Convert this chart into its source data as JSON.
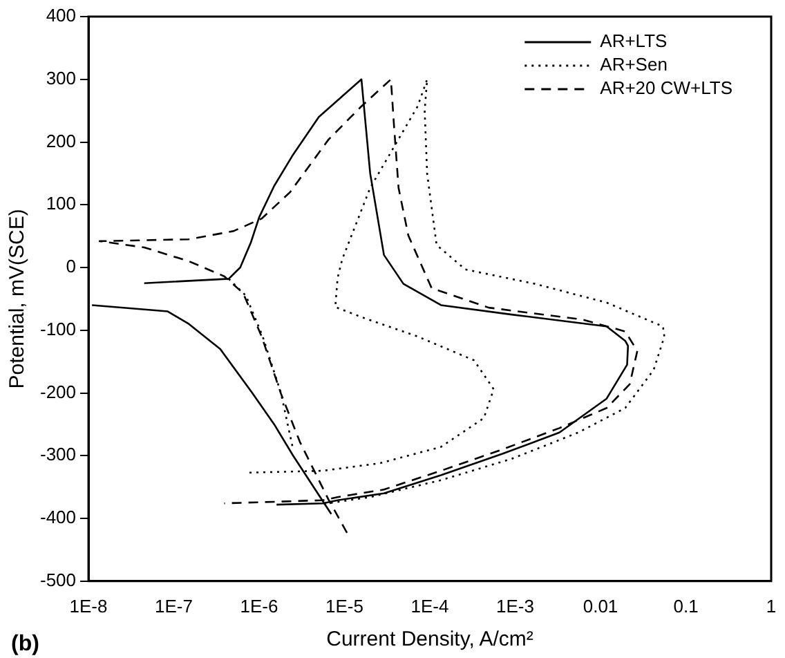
{
  "chart_data": {
    "type": "line",
    "xlabel": "Current Density, A/cm²",
    "ylabel": "Potential, mV(SCE)",
    "annotations": [
      "(b)"
    ],
    "log": "x",
    "grid": false,
    "legend": "top right",
    "marker": "none",
    "xlim": [
      1e-08,
      1
    ],
    "ylim": [
      -500,
      400
    ],
    "xticks": [
      {
        "value": 1e-08,
        "label": "1E-8"
      },
      {
        "value": 1e-07,
        "label": "1E-7"
      },
      {
        "value": 1e-06,
        "label": "1E-6"
      },
      {
        "value": 1e-05,
        "label": "1E-5"
      },
      {
        "value": 0.0001,
        "label": "1E-4"
      },
      {
        "value": 0.001,
        "label": "1E-3"
      },
      0.01,
      0.1,
      1
    ],
    "yticks": [
      -500,
      -400,
      -300,
      -200,
      -100,
      0,
      100,
      200,
      300,
      400
    ],
    "series": [
      {
        "name": "AR+LTS",
        "color": "#000000",
        "line_style": "solid",
        "x": [
          7e-06,
          2.5e-06,
          1.5e-06,
          8.3e-07,
          3.5e-07,
          1.5e-07,
          8.5e-08,
          1.1e-08,
          2e-08,
          4.5e-08,
          4.4e-07,
          6e-07,
          8e-07,
          1e-06,
          1.5e-06,
          2.5e-06,
          5e-06,
          1.58e-05,
          2e-05,
          2.9e-05,
          4.9e-05,
          0.000135,
          0.00091,
          0.0118,
          0.0195,
          0.021,
          0.0205,
          0.0118,
          0.0033,
          0.00071,
          0.000135,
          2.9e-05,
          8.3e-06,
          5.6e-06,
          1.6e-06
        ],
        "values": [
          -393,
          -300,
          -250,
          -200,
          -130,
          -90,
          -70,
          -60,
          null,
          -25,
          -18,
          0,
          40,
          80,
          130,
          180,
          240,
          300,
          150,
          20,
          -26,
          -60,
          -75,
          -94,
          -117,
          -125,
          -155,
          -209,
          -263,
          -297,
          -331,
          -360,
          -371,
          -376,
          -378
        ]
      },
      {
        "name": "AR+Sen",
        "color": "#000000",
        "line_style": "dotted",
        "x": [
          7.7e-07,
          5.6e-06,
          2.6e-05,
          0.000135,
          0.00043,
          0.00056,
          0.00033,
          7.2e-05,
          1.58e-05,
          7.8e-06,
          8.3e-06,
          9.4e-06,
          2e-05,
          7.2e-05,
          9.3e-05,
          8.7e-05,
          9.3e-05,
          0.00012,
          0.00026,
          0.0017,
          0.0118,
          0.054,
          0.056,
          0.042,
          0.0195,
          0.0055,
          0.00091,
          0.000135,
          2e-05,
          5.6e-06,
          3e-06,
          4.4e-07,
          7e-07,
          1.1e-06,
          1.8e-06,
          2.5e-06
        ],
        "values": [
          -327,
          -324,
          -312,
          -286,
          -240,
          -194,
          -148,
          -110,
          -79,
          -63,
          -17,
          13,
          127,
          257,
          300,
          250,
          150,
          36,
          -3,
          -26,
          -56,
          -94,
          -110,
          -163,
          -224,
          -263,
          -305,
          -339,
          -366,
          -377,
          null,
          -18,
          -45,
          -110,
          -200,
          -290
        ]
      },
      {
        "name": "AR+20 CW+LTS",
        "color": "#000000",
        "line_style": "dashed",
        "x": [
          1.07e-05,
          6.5e-06,
          3e-06,
          1.8e-06,
          1.07e-06,
          6.5e-07,
          3.9e-07,
          1.5e-07,
          4.5e-08,
          1.35e-08,
          1.5e-07,
          5e-07,
          1.07e-06,
          2.3e-06,
          6.5e-06,
          1.58e-05,
          3.5e-05,
          3.8e-05,
          4.3e-05,
          5.6e-05,
          0.000105,
          0.00049,
          0.0062,
          0.0195,
          0.027,
          0.022,
          0.0118,
          0.0033,
          0.00071,
          0.000135,
          2.9e-05,
          8.3e-06,
          5.6e-06,
          3.9e-07
        ],
        "values": [
          -423,
          -370,
          -278,
          -201,
          -110,
          -41,
          -14,
          10,
          32,
          42,
          45,
          58,
          78,
          120,
          204,
          257,
          300,
          227,
          127,
          51,
          -33,
          -64,
          -83,
          -102,
          -133,
          -186,
          -224,
          -256,
          -290,
          -324,
          -354,
          -366,
          -371,
          -376
        ]
      }
    ]
  }
}
